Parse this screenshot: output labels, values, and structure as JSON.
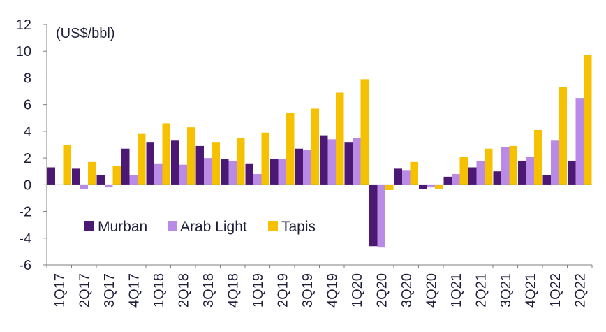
{
  "chart_data": {
    "type": "bar",
    "unit_label": "(US$/bbl)",
    "categories": [
      "1Q17",
      "2Q17",
      "3Q17",
      "4Q17",
      "1Q18",
      "2Q18",
      "3Q18",
      "4Q18",
      "1Q19",
      "2Q19",
      "3Q19",
      "4Q19",
      "1Q20",
      "2Q20",
      "3Q20",
      "4Q20",
      "1Q21",
      "2Q21",
      "3Q21",
      "4Q21",
      "1Q22",
      "2Q22"
    ],
    "series": [
      {
        "name": "Murban",
        "color": "#4b1873",
        "values": [
          1.3,
          1.2,
          0.7,
          2.7,
          3.2,
          3.3,
          2.9,
          1.9,
          1.6,
          1.9,
          2.7,
          3.7,
          3.2,
          -4.6,
          1.2,
          -0.3,
          0.6,
          1.3,
          1.0,
          1.8,
          0.7,
          1.8
        ]
      },
      {
        "name": "Arab Light",
        "color": "#b98be6",
        "values": [
          0.0,
          -0.3,
          -0.2,
          0.7,
          1.6,
          1.5,
          2.0,
          1.8,
          0.8,
          1.9,
          2.6,
          3.4,
          3.5,
          -4.7,
          1.1,
          -0.2,
          0.8,
          1.8,
          2.8,
          2.1,
          3.3,
          6.5
        ]
      },
      {
        "name": "Tapis",
        "color": "#f6c100",
        "values": [
          3.0,
          1.7,
          1.4,
          3.8,
          4.6,
          4.3,
          3.2,
          3.5,
          3.9,
          5.4,
          5.7,
          6.9,
          7.9,
          -0.4,
          1.7,
          -0.3,
          2.1,
          2.7,
          2.9,
          4.1,
          7.3,
          9.7
        ]
      }
    ],
    "ylim": [
      -6,
      12
    ],
    "yticks": [
      -6,
      -4,
      -2,
      0,
      2,
      4,
      6,
      8,
      10,
      12
    ],
    "legend_position": "lower-left inside plot",
    "grid": false
  }
}
